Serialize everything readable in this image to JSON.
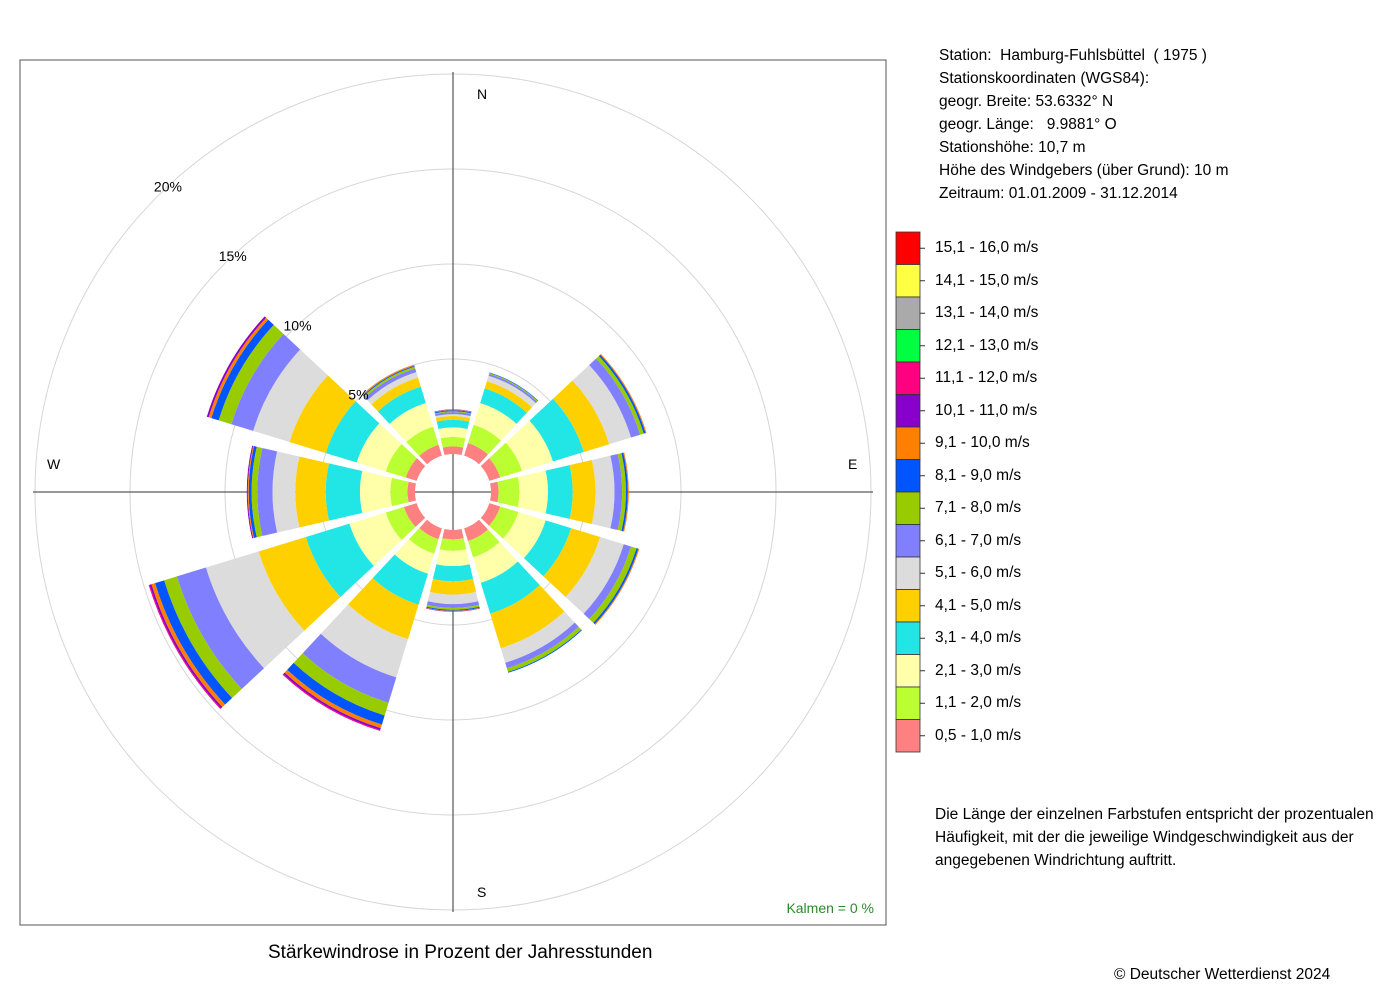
{
  "station": {
    "line1": "Station:  Hamburg-Fuhlsbüttel  ( 1975 )",
    "line2": "Stationskoordinaten (WGS84):",
    "line3": "geogr. Breite: 53.6332° N",
    "line4": "geogr. Länge:   9.9881° O",
    "line5": "Stationshöhe: 10,7 m",
    "line6": "Höhe des Windgebers (über Grund): 10 m",
    "line7": "Zeitraum: 01.01.2009 - 31.12.2014"
  },
  "description": "Die Länge der einzelnen Farbstufen entspricht der prozentualen Häufigkeit, mit der die jeweilige Windgeschwindigkeit aus der angegebenen Windrichtung auftritt.",
  "title": "Stärkewindrose in Prozent der Jahresstunden",
  "copyright": "© Deutscher Wetterdienst  2024",
  "calm_text": "Kalmen  =  0 %",
  "compass": {
    "n": "N",
    "e": "E",
    "s": "S",
    "w": "W"
  },
  "chart_data": {
    "type": "stacked-windrose",
    "unit": "%",
    "ring_labels": [
      "5%",
      "10%",
      "15%",
      "20%"
    ],
    "ring_values": [
      5,
      10,
      15,
      20
    ],
    "directions_deg": [
      0,
      30,
      60,
      90,
      120,
      150,
      180,
      210,
      240,
      270,
      300,
      330
    ],
    "speed_classes": [
      {
        "label": "0,5 - 1,0 m/s",
        "color": "#ff8080"
      },
      {
        "label": "1,1 - 2,0 m/s",
        "color": "#bbff33"
      },
      {
        "label": "2,1 - 3,0 m/s",
        "color": "#ffffaa"
      },
      {
        "label": "3,1 - 4,0 m/s",
        "color": "#22e6e6"
      },
      {
        "label": "4,1 - 5,0 m/s",
        "color": "#ffd000"
      },
      {
        "label": "5,1 - 6,0 m/s",
        "color": "#dcdcdc"
      },
      {
        "label": "6,1 - 7,0 m/s",
        "color": "#8080ff"
      },
      {
        "label": "7,1 - 8,0 m/s",
        "color": "#99cc00"
      },
      {
        "label": "8,1 - 9,0 m/s",
        "color": "#0055ff"
      },
      {
        "label": "9,1 - 10,0 m/s",
        "color": "#ff8000"
      },
      {
        "label": "10,1 - 11,0 m/s",
        "color": "#8800cc"
      },
      {
        "label": "11,1 - 12,0 m/s",
        "color": "#ff0080"
      },
      {
        "label": "12,1 - 13,0 m/s",
        "color": "#00ff40"
      },
      {
        "label": "13,1 - 14,0 m/s",
        "color": "#aaaaaa"
      },
      {
        "label": "14,1 - 15,0 m/s",
        "color": "#ffff44"
      },
      {
        "label": "15,1 - 16,0 m/s",
        "color": "#ff0000"
      }
    ],
    "series": [
      {
        "direction": 0,
        "values": [
          0.4,
          0.5,
          0.5,
          0.4,
          0.2,
          0.1,
          0.1,
          0.05,
          0.05,
          0.03,
          0.02,
          0,
          0,
          0,
          0,
          0
        ]
      },
      {
        "direction": 30,
        "values": [
          0.7,
          1.0,
          1.2,
          0.8,
          0.4,
          0.3,
          0.1,
          0.05,
          0.03,
          0,
          0,
          0,
          0,
          0,
          0,
          0
        ]
      },
      {
        "direction": 60,
        "values": [
          0.6,
          1.2,
          1.7,
          1.7,
          1.4,
          1.2,
          0.5,
          0.2,
          0.1,
          0.05,
          0,
          0,
          0,
          0,
          0,
          0
        ]
      },
      {
        "direction": 90,
        "values": [
          0.4,
          1.1,
          1.5,
          1.3,
          1.2,
          1.0,
          0.4,
          0.2,
          0.1,
          0.05,
          0,
          0,
          0,
          0,
          0,
          0
        ]
      },
      {
        "direction": 120,
        "values": [
          0.6,
          1.0,
          1.5,
          1.4,
          1.6,
          1.3,
          0.4,
          0.3,
          0.1,
          0.05,
          0,
          0,
          0,
          0,
          0,
          0
        ]
      },
      {
        "direction": 150,
        "values": [
          0.7,
          0.9,
          1.4,
          1.7,
          1.9,
          0.8,
          0.3,
          0.2,
          0.05,
          0,
          0,
          0,
          0,
          0,
          0,
          0
        ]
      },
      {
        "direction": 180,
        "values": [
          0.5,
          0.6,
          0.8,
          0.8,
          0.7,
          0.5,
          0.2,
          0.1,
          0.05,
          0.03,
          0.02,
          0,
          0,
          0,
          0,
          0
        ]
      },
      {
        "direction": 210,
        "values": [
          0.6,
          0.8,
          1.1,
          1.7,
          1.9,
          2.1,
          1.4,
          0.7,
          0.5,
          0.2,
          0.1,
          0.05,
          0,
          0,
          0,
          0
        ]
      },
      {
        "direction": 240,
        "values": [
          0.7,
          1.0,
          2.0,
          2.4,
          2.6,
          2.9,
          1.6,
          0.7,
          0.5,
          0.2,
          0.1,
          0.05,
          0,
          0,
          0,
          0
        ]
      },
      {
        "direction": 270,
        "values": [
          0.4,
          0.9,
          1.6,
          1.8,
          1.6,
          1.2,
          0.8,
          0.3,
          0.15,
          0.05,
          0.05,
          0,
          0,
          0,
          0,
          0
        ]
      },
      {
        "direction": 300,
        "values": [
          0.6,
          1.1,
          1.6,
          1.7,
          2.0,
          2.0,
          1.2,
          0.7,
          0.4,
          0.15,
          0.1,
          0,
          0,
          0,
          0,
          0
        ]
      },
      {
        "direction": 330,
        "values": [
          0.6,
          1.0,
          1.3,
          0.9,
          0.5,
          0.3,
          0.2,
          0.1,
          0.05,
          0.05,
          0,
          0,
          0,
          0,
          0,
          0
        ]
      }
    ]
  }
}
